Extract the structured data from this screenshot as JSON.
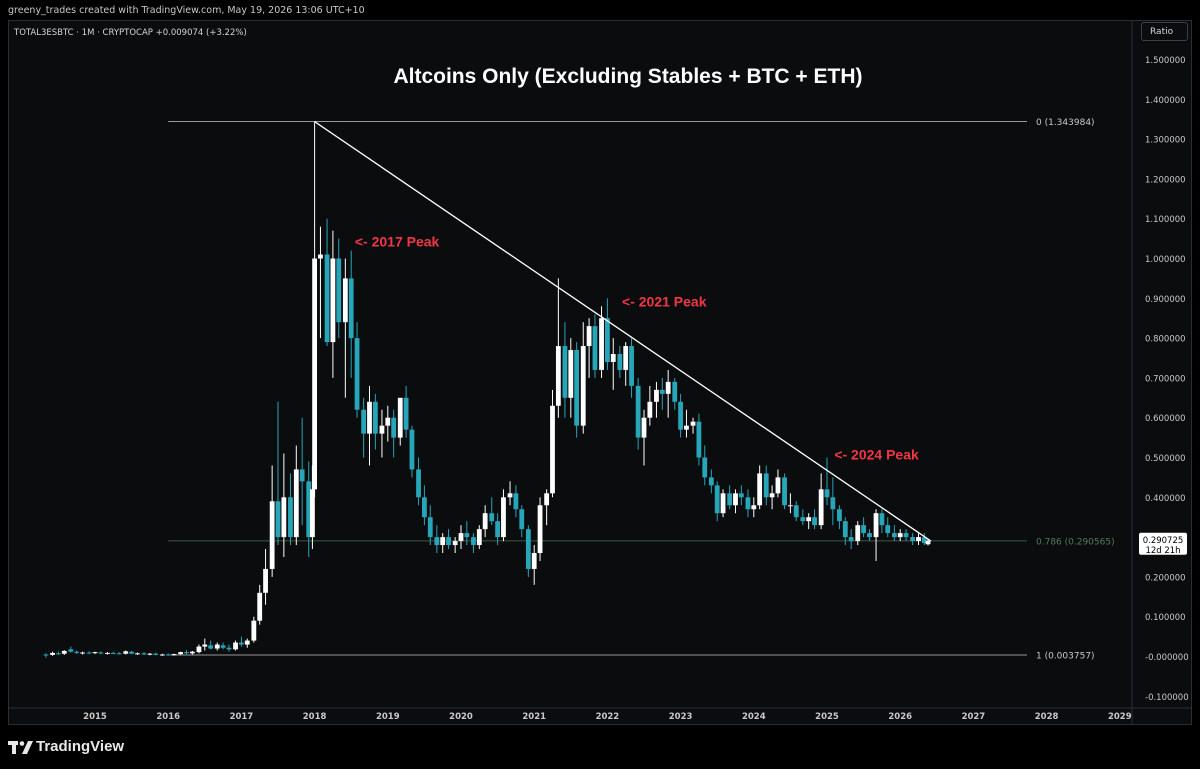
{
  "header": {
    "credit": "greeny_trades created with TradingView.com, May 19, 2026 13:06 UTC+10",
    "symbol_line": "TOTAL3ESBTC · 1M · CRYPTOCAP  +0.009074 (+3.22%)",
    "ratio_button": "Ratio"
  },
  "footer": {
    "brand": "TradingView"
  },
  "colors": {
    "background": "#0b0c0e",
    "bull": "#ffffff",
    "bear": "#26a6b8",
    "annotation": "#f23645",
    "fib_line": "#3a5a45"
  },
  "chart_data": {
    "type": "candlestick",
    "title": "Altcoins Only (Excluding Stables + BTC + ETH)",
    "timeframe": "1M",
    "x_ticks": [
      "2015",
      "2016",
      "2017",
      "2018",
      "2019",
      "2020",
      "2021",
      "2022",
      "2023",
      "2024",
      "2025",
      "2026",
      "2027",
      "2028",
      "2029"
    ],
    "y_ticks": [
      "1.500000",
      "1.400000",
      "1.300000",
      "1.200000",
      "1.100000",
      "1.000000",
      "0.900000",
      "0.800000",
      "0.700000",
      "0.600000",
      "0.500000",
      "0.400000",
      "0.300000",
      "0.200000",
      "0.100000",
      "-0.000000",
      "-0.100000"
    ],
    "y_tick_values": [
      1.5,
      1.4,
      1.3,
      1.2,
      1.1,
      1.0,
      0.9,
      0.8,
      0.7,
      0.6,
      0.5,
      0.4,
      0.3,
      0.2,
      0.1,
      0.0,
      -0.1
    ],
    "ylim": [
      -0.12,
      1.55
    ],
    "xlim": [
      2014.0,
      2029.3
    ],
    "fib_levels": [
      {
        "label": "0 (1.343984)",
        "value": 1.343984
      },
      {
        "label": "0.786 (0.290565)",
        "value": 0.290565
      },
      {
        "label": "1 (0.003757)",
        "value": 0.003757
      }
    ],
    "trendline": {
      "from": [
        2018.0,
        1.343984
      ],
      "to": [
        2026.42,
        0.29
      ]
    },
    "annotations": [
      {
        "text": "<- 2017 Peak",
        "t": 2018.55,
        "v": 1.03
      },
      {
        "text": "<- 2021 Peak",
        "t": 2022.2,
        "v": 0.88
      },
      {
        "text": "<- 2024 Peak",
        "t": 2025.1,
        "v": 0.495
      }
    ],
    "last_price": "0.290725",
    "countdown": "12d 21h",
    "candles": [
      {
        "t": 2014.33,
        "o": 0.005,
        "h": 0.008,
        "l": -0.003,
        "c": 0.003
      },
      {
        "t": 2014.42,
        "o": 0.004,
        "h": 0.012,
        "l": 0.002,
        "c": 0.009
      },
      {
        "t": 2014.5,
        "o": 0.008,
        "h": 0.012,
        "l": 0.004,
        "c": 0.006
      },
      {
        "t": 2014.58,
        "o": 0.007,
        "h": 0.016,
        "l": 0.004,
        "c": 0.014
      },
      {
        "t": 2014.67,
        "o": 0.018,
        "h": 0.025,
        "l": 0.01,
        "c": 0.012
      },
      {
        "t": 2014.75,
        "o": 0.012,
        "h": 0.015,
        "l": 0.006,
        "c": 0.009
      },
      {
        "t": 2014.83,
        "o": 0.008,
        "h": 0.012,
        "l": 0.005,
        "c": 0.01
      },
      {
        "t": 2014.92,
        "o": 0.01,
        "h": 0.013,
        "l": 0.006,
        "c": 0.008
      },
      {
        "t": 2015.0,
        "o": 0.009,
        "h": 0.012,
        "l": 0.006,
        "c": 0.011
      },
      {
        "t": 2015.08,
        "o": 0.01,
        "h": 0.013,
        "l": 0.006,
        "c": 0.008
      },
      {
        "t": 2015.17,
        "o": 0.008,
        "h": 0.011,
        "l": 0.005,
        "c": 0.009
      },
      {
        "t": 2015.25,
        "o": 0.009,
        "h": 0.012,
        "l": 0.006,
        "c": 0.008
      },
      {
        "t": 2015.33,
        "o": 0.008,
        "h": 0.011,
        "l": 0.005,
        "c": 0.007
      },
      {
        "t": 2015.42,
        "o": 0.007,
        "h": 0.015,
        "l": 0.005,
        "c": 0.013
      },
      {
        "t": 2015.5,
        "o": 0.012,
        "h": 0.014,
        "l": 0.006,
        "c": 0.007
      },
      {
        "t": 2015.58,
        "o": 0.007,
        "h": 0.01,
        "l": 0.004,
        "c": 0.008
      },
      {
        "t": 2015.67,
        "o": 0.008,
        "h": 0.011,
        "l": 0.004,
        "c": 0.005
      },
      {
        "t": 2015.75,
        "o": 0.006,
        "h": 0.009,
        "l": 0.003,
        "c": 0.007
      },
      {
        "t": 2015.83,
        "o": 0.007,
        "h": 0.01,
        "l": 0.003,
        "c": 0.004
      },
      {
        "t": 2015.92,
        "o": 0.004,
        "h": 0.007,
        "l": 0.002,
        "c": 0.005
      },
      {
        "t": 2016.0,
        "o": 0.005,
        "h": 0.008,
        "l": 0.002,
        "c": 0.004
      },
      {
        "t": 2016.08,
        "o": 0.004,
        "h": 0.007,
        "l": 0.002,
        "c": 0.006
      },
      {
        "t": 2016.17,
        "o": 0.006,
        "h": 0.012,
        "l": 0.004,
        "c": 0.011
      },
      {
        "t": 2016.25,
        "o": 0.011,
        "h": 0.016,
        "l": 0.006,
        "c": 0.008
      },
      {
        "t": 2016.33,
        "o": 0.008,
        "h": 0.014,
        "l": 0.005,
        "c": 0.012
      },
      {
        "t": 2016.42,
        "o": 0.011,
        "h": 0.03,
        "l": 0.008,
        "c": 0.025
      },
      {
        "t": 2016.5,
        "o": 0.025,
        "h": 0.045,
        "l": 0.015,
        "c": 0.03
      },
      {
        "t": 2016.58,
        "o": 0.028,
        "h": 0.04,
        "l": 0.018,
        "c": 0.02
      },
      {
        "t": 2016.67,
        "o": 0.02,
        "h": 0.035,
        "l": 0.015,
        "c": 0.03
      },
      {
        "t": 2016.75,
        "o": 0.028,
        "h": 0.035,
        "l": 0.018,
        "c": 0.022
      },
      {
        "t": 2016.83,
        "o": 0.022,
        "h": 0.03,
        "l": 0.012,
        "c": 0.018
      },
      {
        "t": 2016.92,
        "o": 0.018,
        "h": 0.04,
        "l": 0.015,
        "c": 0.035
      },
      {
        "t": 2017.0,
        "o": 0.035,
        "h": 0.05,
        "l": 0.025,
        "c": 0.03
      },
      {
        "t": 2017.08,
        "o": 0.03,
        "h": 0.045,
        "l": 0.022,
        "c": 0.04
      },
      {
        "t": 2017.17,
        "o": 0.04,
        "h": 0.1,
        "l": 0.035,
        "c": 0.09
      },
      {
        "t": 2017.25,
        "o": 0.09,
        "h": 0.18,
        "l": 0.08,
        "c": 0.16
      },
      {
        "t": 2017.33,
        "o": 0.16,
        "h": 0.27,
        "l": 0.13,
        "c": 0.22
      },
      {
        "t": 2017.42,
        "o": 0.22,
        "h": 0.48,
        "l": 0.2,
        "c": 0.39
      },
      {
        "t": 2017.5,
        "o": 0.39,
        "h": 0.64,
        "l": 0.28,
        "c": 0.3
      },
      {
        "t": 2017.58,
        "o": 0.3,
        "h": 0.51,
        "l": 0.25,
        "c": 0.4
      },
      {
        "t": 2017.67,
        "o": 0.4,
        "h": 0.46,
        "l": 0.28,
        "c": 0.3
      },
      {
        "t": 2017.75,
        "o": 0.3,
        "h": 0.53,
        "l": 0.28,
        "c": 0.47
      },
      {
        "t": 2017.83,
        "o": 0.47,
        "h": 0.6,
        "l": 0.33,
        "c": 0.44
      },
      {
        "t": 2017.92,
        "o": 0.44,
        "h": 0.49,
        "l": 0.25,
        "c": 0.3
      },
      {
        "t": 2017.97,
        "o": 0.3,
        "h": 0.48,
        "l": 0.27,
        "c": 0.42
      },
      {
        "t": 2018.0,
        "o": 0.42,
        "h": 1.343984,
        "l": 0.4,
        "c": 1.0
      },
      {
        "t": 2018.08,
        "o": 1.0,
        "h": 1.08,
        "l": 0.8,
        "c": 1.01
      },
      {
        "t": 2018.17,
        "o": 1.01,
        "h": 1.1,
        "l": 0.78,
        "c": 0.79
      },
      {
        "t": 2018.25,
        "o": 0.79,
        "h": 1.07,
        "l": 0.7,
        "c": 1.0
      },
      {
        "t": 2018.33,
        "o": 1.0,
        "h": 1.05,
        "l": 0.8,
        "c": 0.84
      },
      {
        "t": 2018.42,
        "o": 0.84,
        "h": 1.0,
        "l": 0.65,
        "c": 0.95
      },
      {
        "t": 2018.5,
        "o": 0.95,
        "h": 1.02,
        "l": 0.7,
        "c": 0.8
      },
      {
        "t": 2018.58,
        "o": 0.8,
        "h": 0.84,
        "l": 0.6,
        "c": 0.62
      },
      {
        "t": 2018.67,
        "o": 0.62,
        "h": 0.65,
        "l": 0.5,
        "c": 0.56
      },
      {
        "t": 2018.75,
        "o": 0.56,
        "h": 0.68,
        "l": 0.48,
        "c": 0.64
      },
      {
        "t": 2018.83,
        "o": 0.64,
        "h": 0.66,
        "l": 0.52,
        "c": 0.56
      },
      {
        "t": 2018.92,
        "o": 0.56,
        "h": 0.62,
        "l": 0.5,
        "c": 0.58
      },
      {
        "t": 2019.0,
        "o": 0.58,
        "h": 0.63,
        "l": 0.54,
        "c": 0.6
      },
      {
        "t": 2019.08,
        "o": 0.6,
        "h": 0.62,
        "l": 0.5,
        "c": 0.55
      },
      {
        "t": 2019.17,
        "o": 0.55,
        "h": 0.64,
        "l": 0.53,
        "c": 0.65
      },
      {
        "t": 2019.25,
        "o": 0.65,
        "h": 0.68,
        "l": 0.55,
        "c": 0.57
      },
      {
        "t": 2019.33,
        "o": 0.57,
        "h": 0.58,
        "l": 0.45,
        "c": 0.47
      },
      {
        "t": 2019.42,
        "o": 0.47,
        "h": 0.5,
        "l": 0.38,
        "c": 0.4
      },
      {
        "t": 2019.5,
        "o": 0.4,
        "h": 0.43,
        "l": 0.33,
        "c": 0.35
      },
      {
        "t": 2019.58,
        "o": 0.35,
        "h": 0.38,
        "l": 0.28,
        "c": 0.3
      },
      {
        "t": 2019.67,
        "o": 0.3,
        "h": 0.33,
        "l": 0.26,
        "c": 0.28
      },
      {
        "t": 2019.75,
        "o": 0.28,
        "h": 0.31,
        "l": 0.26,
        "c": 0.3
      },
      {
        "t": 2019.83,
        "o": 0.3,
        "h": 0.32,
        "l": 0.27,
        "c": 0.28
      },
      {
        "t": 2019.92,
        "o": 0.28,
        "h": 0.3,
        "l": 0.26,
        "c": 0.29
      },
      {
        "t": 2020.0,
        "o": 0.29,
        "h": 0.33,
        "l": 0.27,
        "c": 0.31
      },
      {
        "t": 2020.08,
        "o": 0.31,
        "h": 0.34,
        "l": 0.28,
        "c": 0.3
      },
      {
        "t": 2020.17,
        "o": 0.3,
        "h": 0.31,
        "l": 0.26,
        "c": 0.28
      },
      {
        "t": 2020.25,
        "o": 0.28,
        "h": 0.33,
        "l": 0.27,
        "c": 0.32
      },
      {
        "t": 2020.33,
        "o": 0.32,
        "h": 0.38,
        "l": 0.3,
        "c": 0.36
      },
      {
        "t": 2020.42,
        "o": 0.36,
        "h": 0.4,
        "l": 0.33,
        "c": 0.34
      },
      {
        "t": 2020.5,
        "o": 0.34,
        "h": 0.36,
        "l": 0.28,
        "c": 0.3
      },
      {
        "t": 2020.58,
        "o": 0.3,
        "h": 0.42,
        "l": 0.29,
        "c": 0.4
      },
      {
        "t": 2020.67,
        "o": 0.4,
        "h": 0.44,
        "l": 0.38,
        "c": 0.41
      },
      {
        "t": 2020.75,
        "o": 0.41,
        "h": 0.43,
        "l": 0.35,
        "c": 0.37
      },
      {
        "t": 2020.83,
        "o": 0.37,
        "h": 0.38,
        "l": 0.3,
        "c": 0.32
      },
      {
        "t": 2020.92,
        "o": 0.32,
        "h": 0.33,
        "l": 0.2,
        "c": 0.22
      },
      {
        "t": 2021.0,
        "o": 0.22,
        "h": 0.28,
        "l": 0.18,
        "c": 0.26
      },
      {
        "t": 2021.08,
        "o": 0.26,
        "h": 0.4,
        "l": 0.24,
        "c": 0.38
      },
      {
        "t": 2021.17,
        "o": 0.38,
        "h": 0.42,
        "l": 0.33,
        "c": 0.41
      },
      {
        "t": 2021.25,
        "o": 0.41,
        "h": 0.67,
        "l": 0.4,
        "c": 0.63
      },
      {
        "t": 2021.33,
        "o": 0.63,
        "h": 0.95,
        "l": 0.6,
        "c": 0.78
      },
      {
        "t": 2021.42,
        "o": 0.78,
        "h": 0.84,
        "l": 0.6,
        "c": 0.65
      },
      {
        "t": 2021.5,
        "o": 0.65,
        "h": 0.8,
        "l": 0.6,
        "c": 0.77
      },
      {
        "t": 2021.58,
        "o": 0.77,
        "h": 0.79,
        "l": 0.55,
        "c": 0.58
      },
      {
        "t": 2021.67,
        "o": 0.58,
        "h": 0.84,
        "l": 0.56,
        "c": 0.78
      },
      {
        "t": 2021.75,
        "o": 0.78,
        "h": 0.85,
        "l": 0.7,
        "c": 0.83
      },
      {
        "t": 2021.83,
        "o": 0.83,
        "h": 0.86,
        "l": 0.7,
        "c": 0.72
      },
      {
        "t": 2021.92,
        "o": 0.72,
        "h": 0.88,
        "l": 0.7,
        "c": 0.85
      },
      {
        "t": 2022.0,
        "o": 0.85,
        "h": 0.9,
        "l": 0.72,
        "c": 0.74
      },
      {
        "t": 2022.08,
        "o": 0.74,
        "h": 0.8,
        "l": 0.67,
        "c": 0.76
      },
      {
        "t": 2022.17,
        "o": 0.76,
        "h": 0.78,
        "l": 0.7,
        "c": 0.72
      },
      {
        "t": 2022.25,
        "o": 0.72,
        "h": 0.79,
        "l": 0.68,
        "c": 0.78
      },
      {
        "t": 2022.33,
        "o": 0.78,
        "h": 0.8,
        "l": 0.65,
        "c": 0.68
      },
      {
        "t": 2022.42,
        "o": 0.68,
        "h": 0.7,
        "l": 0.52,
        "c": 0.55
      },
      {
        "t": 2022.5,
        "o": 0.55,
        "h": 0.62,
        "l": 0.48,
        "c": 0.6
      },
      {
        "t": 2022.58,
        "o": 0.6,
        "h": 0.68,
        "l": 0.58,
        "c": 0.64
      },
      {
        "t": 2022.67,
        "o": 0.64,
        "h": 0.69,
        "l": 0.6,
        "c": 0.67
      },
      {
        "t": 2022.75,
        "o": 0.67,
        "h": 0.7,
        "l": 0.62,
        "c": 0.66
      },
      {
        "t": 2022.83,
        "o": 0.66,
        "h": 0.72,
        "l": 0.6,
        "c": 0.69
      },
      {
        "t": 2022.92,
        "o": 0.69,
        "h": 0.7,
        "l": 0.62,
        "c": 0.64
      },
      {
        "t": 2023.0,
        "o": 0.64,
        "h": 0.66,
        "l": 0.55,
        "c": 0.57
      },
      {
        "t": 2023.08,
        "o": 0.57,
        "h": 0.62,
        "l": 0.55,
        "c": 0.58
      },
      {
        "t": 2023.17,
        "o": 0.58,
        "h": 0.6,
        "l": 0.56,
        "c": 0.59
      },
      {
        "t": 2023.25,
        "o": 0.59,
        "h": 0.61,
        "l": 0.48,
        "c": 0.5
      },
      {
        "t": 2023.33,
        "o": 0.5,
        "h": 0.53,
        "l": 0.43,
        "c": 0.45
      },
      {
        "t": 2023.42,
        "o": 0.45,
        "h": 0.47,
        "l": 0.41,
        "c": 0.43
      },
      {
        "t": 2023.5,
        "o": 0.43,
        "h": 0.44,
        "l": 0.34,
        "c": 0.36
      },
      {
        "t": 2023.58,
        "o": 0.36,
        "h": 0.42,
        "l": 0.35,
        "c": 0.41
      },
      {
        "t": 2023.67,
        "o": 0.41,
        "h": 0.43,
        "l": 0.37,
        "c": 0.38
      },
      {
        "t": 2023.75,
        "o": 0.38,
        "h": 0.42,
        "l": 0.36,
        "c": 0.41
      },
      {
        "t": 2023.83,
        "o": 0.41,
        "h": 0.43,
        "l": 0.38,
        "c": 0.4
      },
      {
        "t": 2023.92,
        "o": 0.4,
        "h": 0.42,
        "l": 0.35,
        "c": 0.37
      },
      {
        "t": 2024.0,
        "o": 0.37,
        "h": 0.4,
        "l": 0.35,
        "c": 0.38
      },
      {
        "t": 2024.08,
        "o": 0.38,
        "h": 0.48,
        "l": 0.37,
        "c": 0.46
      },
      {
        "t": 2024.17,
        "o": 0.46,
        "h": 0.48,
        "l": 0.38,
        "c": 0.4
      },
      {
        "t": 2024.25,
        "o": 0.4,
        "h": 0.43,
        "l": 0.37,
        "c": 0.41
      },
      {
        "t": 2024.33,
        "o": 0.41,
        "h": 0.47,
        "l": 0.4,
        "c": 0.45
      },
      {
        "t": 2024.42,
        "o": 0.45,
        "h": 0.46,
        "l": 0.37,
        "c": 0.38
      },
      {
        "t": 2024.5,
        "o": 0.38,
        "h": 0.41,
        "l": 0.36,
        "c": 0.38
      },
      {
        "t": 2024.58,
        "o": 0.38,
        "h": 0.39,
        "l": 0.34,
        "c": 0.35
      },
      {
        "t": 2024.67,
        "o": 0.35,
        "h": 0.37,
        "l": 0.33,
        "c": 0.34
      },
      {
        "t": 2024.75,
        "o": 0.34,
        "h": 0.36,
        "l": 0.32,
        "c": 0.35
      },
      {
        "t": 2024.83,
        "o": 0.35,
        "h": 0.37,
        "l": 0.32,
        "c": 0.33
      },
      {
        "t": 2024.92,
        "o": 0.33,
        "h": 0.46,
        "l": 0.32,
        "c": 0.42
      },
      {
        "t": 2025.0,
        "o": 0.42,
        "h": 0.5,
        "l": 0.38,
        "c": 0.4
      },
      {
        "t": 2025.08,
        "o": 0.4,
        "h": 0.45,
        "l": 0.33,
        "c": 0.37
      },
      {
        "t": 2025.17,
        "o": 0.37,
        "h": 0.38,
        "l": 0.32,
        "c": 0.34
      },
      {
        "t": 2025.25,
        "o": 0.34,
        "h": 0.35,
        "l": 0.28,
        "c": 0.3
      },
      {
        "t": 2025.33,
        "o": 0.3,
        "h": 0.32,
        "l": 0.27,
        "c": 0.29
      },
      {
        "t": 2025.42,
        "o": 0.29,
        "h": 0.34,
        "l": 0.28,
        "c": 0.33
      },
      {
        "t": 2025.5,
        "o": 0.33,
        "h": 0.35,
        "l": 0.3,
        "c": 0.31
      },
      {
        "t": 2025.58,
        "o": 0.31,
        "h": 0.32,
        "l": 0.29,
        "c": 0.3
      },
      {
        "t": 2025.67,
        "o": 0.3,
        "h": 0.37,
        "l": 0.24,
        "c": 0.36
      },
      {
        "t": 2025.75,
        "o": 0.36,
        "h": 0.37,
        "l": 0.31,
        "c": 0.33
      },
      {
        "t": 2025.83,
        "o": 0.33,
        "h": 0.35,
        "l": 0.3,
        "c": 0.31
      },
      {
        "t": 2025.92,
        "o": 0.31,
        "h": 0.33,
        "l": 0.29,
        "c": 0.3
      },
      {
        "t": 2026.0,
        "o": 0.3,
        "h": 0.32,
        "l": 0.29,
        "c": 0.31
      },
      {
        "t": 2026.08,
        "o": 0.31,
        "h": 0.32,
        "l": 0.29,
        "c": 0.3
      },
      {
        "t": 2026.17,
        "o": 0.3,
        "h": 0.31,
        "l": 0.28,
        "c": 0.29
      },
      {
        "t": 2026.25,
        "o": 0.29,
        "h": 0.31,
        "l": 0.28,
        "c": 0.3
      },
      {
        "t": 2026.33,
        "o": 0.3,
        "h": 0.31,
        "l": 0.28,
        "c": 0.285
      },
      {
        "t": 2026.38,
        "o": 0.282,
        "h": 0.295,
        "l": 0.279,
        "c": 0.290725
      }
    ]
  }
}
